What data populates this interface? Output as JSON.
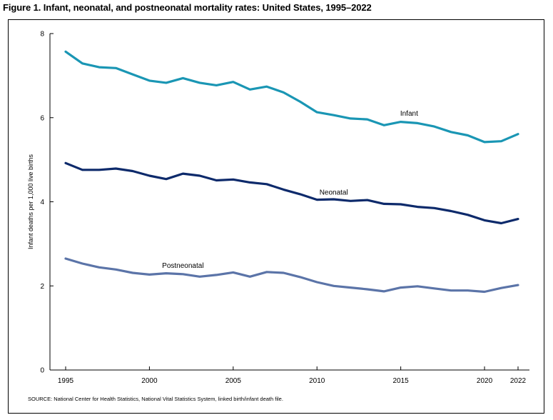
{
  "figure": {
    "title": "Figure 1. Infant, neonatal, and postneonatal mortality rates: United States, 1995–2022",
    "source": "SOURCE: National Center for Health Statistics, National Vital Statistics System, linked birth/infant death file."
  },
  "chart_data": {
    "type": "line",
    "title": "Figure 1. Infant, neonatal, and postneonatal mortality rates: United States, 1995–2022",
    "xlabel": "",
    "ylabel": "Infant deaths per 1,000 live births",
    "xlim": [
      1995,
      2022
    ],
    "ylim": [
      0,
      8
    ],
    "grid": false,
    "x_ticks": [
      1995,
      2000,
      2005,
      2010,
      2015,
      2020,
      2022
    ],
    "y_ticks": [
      0,
      2,
      4,
      6,
      8
    ],
    "x": [
      1995,
      1996,
      1997,
      1998,
      1999,
      2000,
      2001,
      2002,
      2003,
      2004,
      2005,
      2006,
      2007,
      2008,
      2009,
      2010,
      2011,
      2012,
      2013,
      2014,
      2015,
      2016,
      2017,
      2018,
      2019,
      2020,
      2021,
      2022
    ],
    "series": [
      {
        "name": "Infant",
        "color": "#1a96b4",
        "label_at": [
          2015.5,
          6.05
        ],
        "values": [
          7.57,
          7.29,
          7.2,
          7.18,
          7.03,
          6.88,
          6.83,
          6.94,
          6.83,
          6.77,
          6.85,
          6.67,
          6.74,
          6.6,
          6.38,
          6.13,
          6.06,
          5.98,
          5.96,
          5.82,
          5.9,
          5.87,
          5.79,
          5.66,
          5.58,
          5.42,
          5.44,
          5.61
        ]
      },
      {
        "name": "Neonatal",
        "color": "#0d2a6b",
        "label_at": [
          2011,
          4.17
        ],
        "values": [
          4.92,
          4.76,
          4.76,
          4.79,
          4.73,
          4.62,
          4.54,
          4.67,
          4.62,
          4.51,
          4.53,
          4.46,
          4.42,
          4.29,
          4.18,
          4.05,
          4.06,
          4.02,
          4.04,
          3.95,
          3.94,
          3.88,
          3.85,
          3.78,
          3.69,
          3.56,
          3.49,
          3.59
        ]
      },
      {
        "name": "Postneonatal",
        "color": "#5b74a8",
        "label_at": [
          2002,
          2.43
        ],
        "values": [
          2.65,
          2.53,
          2.44,
          2.39,
          2.31,
          2.27,
          2.3,
          2.28,
          2.22,
          2.26,
          2.32,
          2.22,
          2.33,
          2.31,
          2.21,
          2.09,
          2.0,
          1.96,
          1.92,
          1.87,
          1.96,
          1.99,
          1.94,
          1.89,
          1.89,
          1.86,
          1.95,
          2.02
        ]
      }
    ]
  }
}
